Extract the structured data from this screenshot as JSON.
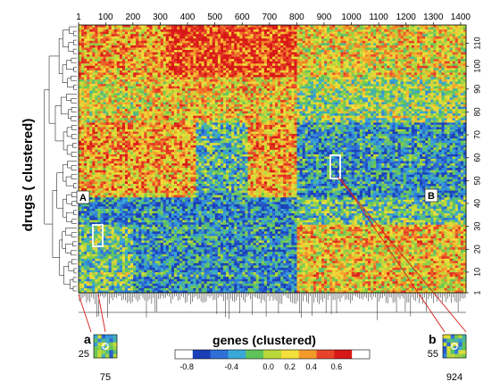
{
  "chart_data": {
    "type": "heatmap",
    "xlabel": "genes  (clustered)",
    "ylabel": "drugs  ( clustered)",
    "x_ticks": [
      1,
      100,
      200,
      300,
      400,
      500,
      600,
      700,
      800,
      900,
      1000,
      1100,
      1200,
      1300,
      1400
    ],
    "y_ticks": [
      1,
      10,
      20,
      30,
      40,
      50,
      60,
      70,
      80,
      90,
      100,
      110
    ],
    "xlim": [
      1,
      1420
    ],
    "ylim": [
      1,
      118
    ],
    "grid": false,
    "colorbar": {
      "ticks": [
        "-0.8",
        "-0.4",
        "0.0",
        "0.2",
        "0.4",
        "0.6"
      ],
      "colors": [
        "#ffffff",
        "#1a3fb8",
        "#2f6fd6",
        "#38a8d8",
        "#5fc45a",
        "#b8d83a",
        "#f3e03a",
        "#f39a2a",
        "#e8442a",
        "#d81818",
        "#ffffff"
      ],
      "placement": "bottom-center"
    },
    "cluster_labels": [
      {
        "text": "A",
        "x": 1,
        "y": 42
      },
      {
        "text": "B",
        "x": 1400,
        "y": 42
      }
    ],
    "insets": [
      {
        "label": "a",
        "y_tick": "25",
        "x_tick": "75",
        "center": {
          "gene": 75,
          "drug": 25
        }
      },
      {
        "label": "b",
        "y_tick": "55",
        "x_tick": "924",
        "center": {
          "gene": 924,
          "drug": 55
        }
      }
    ]
  }
}
